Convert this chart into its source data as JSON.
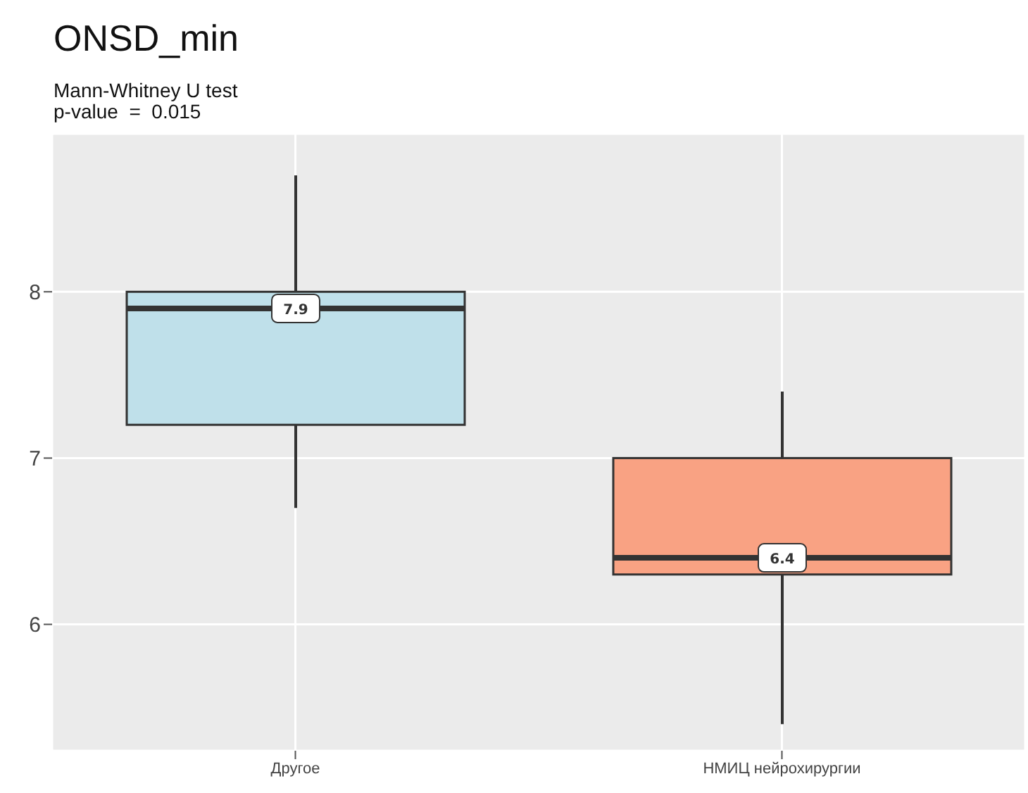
{
  "chart_data": {
    "type": "box",
    "title": "ONSD_min",
    "subtitle": "Mann-Whitney U test\np-value  =  0.015",
    "categories": [
      "Другое",
      "НМИЦ нейрохирургии"
    ],
    "boxes": [
      {
        "low": 6.7,
        "q1": 7.2,
        "median": 7.9,
        "q3": 8.0,
        "high": 8.7
      },
      {
        "low": 5.4,
        "q1": 6.3,
        "median": 6.4,
        "q3": 7.0,
        "high": 7.4
      }
    ],
    "colors": [
      "#bfe0ea",
      "#f9a283"
    ],
    "ylim": [
      5.24,
      8.95
    ],
    "yticks": [
      6,
      7,
      8
    ],
    "grid": true,
    "annotations": [
      {
        "text": "7.9",
        "x": "Другое",
        "y": 7.9
      },
      {
        "text": "6.4",
        "x": "НМИЦ нейрохирургии",
        "y": 6.4
      }
    ]
  }
}
